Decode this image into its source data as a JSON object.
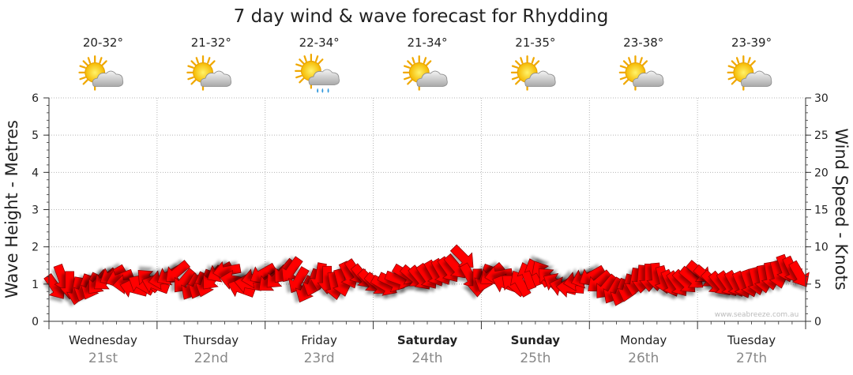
{
  "chart_data": {
    "type": "line",
    "title": "7 day wind & wave forecast for Rhydding",
    "ylabel_left": "Wave Height - Metres",
    "ylabel_right": "Wind Speed - Knots",
    "ylim_left": [
      0,
      6
    ],
    "ylim_right": [
      0,
      30
    ],
    "left_ticks": [
      "0",
      "1",
      "2",
      "3",
      "4",
      "5",
      "6"
    ],
    "right_ticks": [
      "0",
      "5",
      "10",
      "15",
      "20",
      "25",
      "30"
    ],
    "grid": true,
    "days": [
      {
        "weekday": "Wednesday",
        "date": "21st",
        "temp": "20-32°",
        "icon": "partly-cloudy-icon",
        "bold": false
      },
      {
        "weekday": "Thursday",
        "date": "22nd",
        "temp": "21-32°",
        "icon": "partly-cloudy-icon",
        "bold": false
      },
      {
        "weekday": "Friday",
        "date": "23rd",
        "temp": "22-34°",
        "icon": "shower-icon",
        "bold": false
      },
      {
        "weekday": "Saturday",
        "date": "24th",
        "temp": "21-34°",
        "icon": "partly-cloudy-icon",
        "bold": true
      },
      {
        "weekday": "Sunday",
        "date": "25th",
        "temp": "21-35°",
        "icon": "partly-cloudy-icon",
        "bold": true
      },
      {
        "weekday": "Monday",
        "date": "26th",
        "temp": "23-38°",
        "icon": "partly-cloudy-icon",
        "bold": false
      },
      {
        "weekday": "Tuesday",
        "date": "27th",
        "temp": "23-39°",
        "icon": "partly-cloudy-icon",
        "bold": false
      }
    ],
    "wind_series": {
      "name": "Wind",
      "color": "#ff0000",
      "speed_knots": [
        4.6,
        5.8,
        4.9,
        4.1,
        4.5,
        4.7,
        5.2,
        5.6,
        6.2,
        5.8,
        5.0,
        4.4,
        4.9,
        5.5,
        4.9,
        5.6,
        6.2,
        6.6,
        5.4,
        4.6,
        4.8,
        5.1,
        5.8,
        6.6,
        6.8,
        5.5,
        4.4,
        5.0,
        5.8,
        6.4,
        5.4,
        5.9,
        6.7,
        6.9,
        5.5,
        4.3,
        5.2,
        6.0,
        5.6,
        4.8,
        5.2,
        6.2,
        6.6,
        6.0,
        5.4,
        5.0,
        4.8,
        5.3,
        5.6,
        6.3,
        6.0,
        5.8,
        6.0,
        6.4,
        6.6,
        6.9,
        7.3,
        8.6,
        6.0,
        5.2,
        5.8,
        6.3,
        6.2,
        5.0,
        4.9,
        5.1,
        6.1,
        6.6,
        6.4,
        5.7,
        5.1,
        4.6,
        4.5,
        5.4,
        5.8,
        6.1,
        5.3,
        4.6,
        4.1,
        3.9,
        4.5,
        5.3,
        5.7,
        5.9,
        6.0,
        5.6,
        5.1,
        5.0,
        5.3,
        5.8,
        6.6,
        6.0,
        5.2,
        5.0,
        5.0,
        5.0,
        4.9,
        5.1,
        5.4,
        5.7,
        6.1,
        6.3,
        7.1,
        6.9,
        6.3
      ],
      "direction_deg": [
        55,
        70,
        90,
        100,
        110,
        115,
        130,
        140,
        150,
        160,
        175,
        195,
        210,
        225,
        200,
        170,
        150,
        140,
        130,
        120,
        115,
        110,
        130,
        150,
        170,
        190,
        200,
        190,
        170,
        150,
        140,
        135,
        130,
        125,
        120,
        115,
        110,
        100,
        90,
        80,
        75,
        65,
        55,
        50,
        45,
        40,
        30,
        25,
        20,
        30,
        40,
        50,
        55,
        60,
        60,
        55,
        50,
        45,
        60,
        90,
        110,
        140,
        170,
        200,
        220,
        240,
        250,
        250,
        240,
        225,
        210,
        195,
        185,
        170,
        160,
        150,
        140,
        130,
        120,
        110,
        105,
        100,
        95,
        90,
        85,
        75,
        65,
        55,
        45,
        40,
        40,
        40,
        45,
        50,
        55,
        60,
        65,
        70,
        75,
        80,
        80,
        75,
        70,
        65,
        60
      ]
    },
    "watermark": "www.seabreeze.com.au"
  }
}
